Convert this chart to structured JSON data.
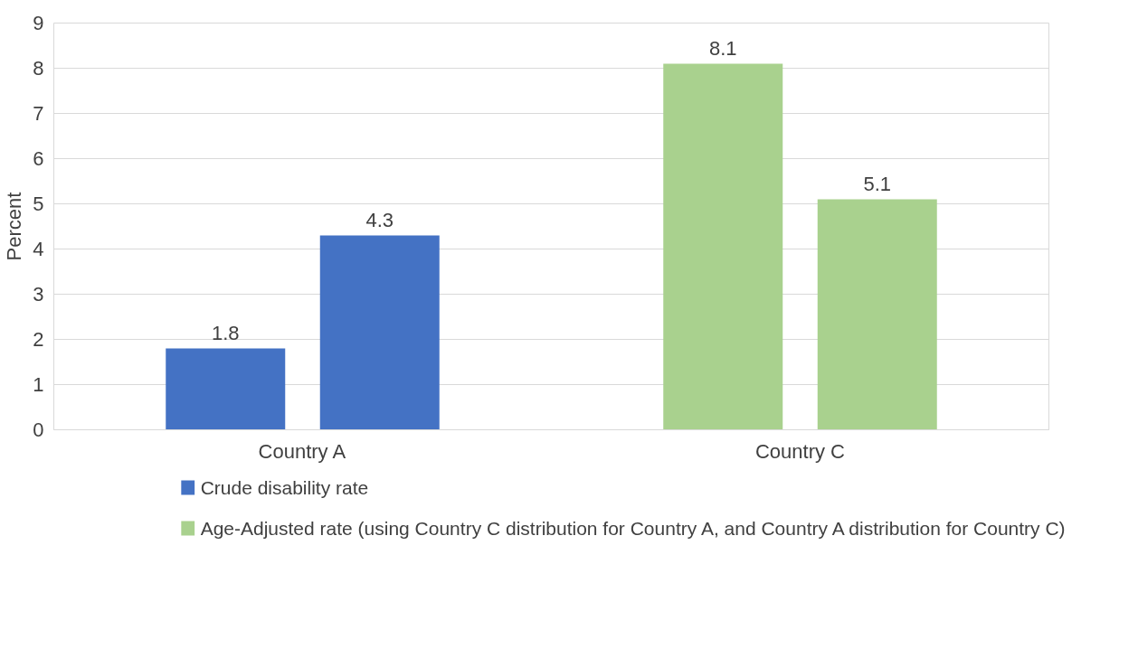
{
  "chart_data": {
    "type": "bar",
    "ylabel": "Percent",
    "categories": [
      "Country A",
      "Country C"
    ],
    "series": [
      {
        "name": "Crude disability rate",
        "color": "#4472c4",
        "colors": [
          "#4472c4",
          "#a9d18e"
        ],
        "values": [
          1.8,
          8.1
        ]
      },
      {
        "name": "Age-Adjusted rate (using Country C distribution for Country A, and Country A distribution for Country C)",
        "color": "#a9d18e",
        "colors": [
          "#4472c4",
          "#a9d18e"
        ],
        "values": [
          4.3,
          5.1
        ]
      }
    ],
    "ylim": [
      0,
      9
    ],
    "yticks": [
      0,
      1,
      2,
      3,
      4,
      5,
      6,
      7,
      8,
      9
    ],
    "grid": "y",
    "data_labels": true,
    "legend": "bottom"
  }
}
